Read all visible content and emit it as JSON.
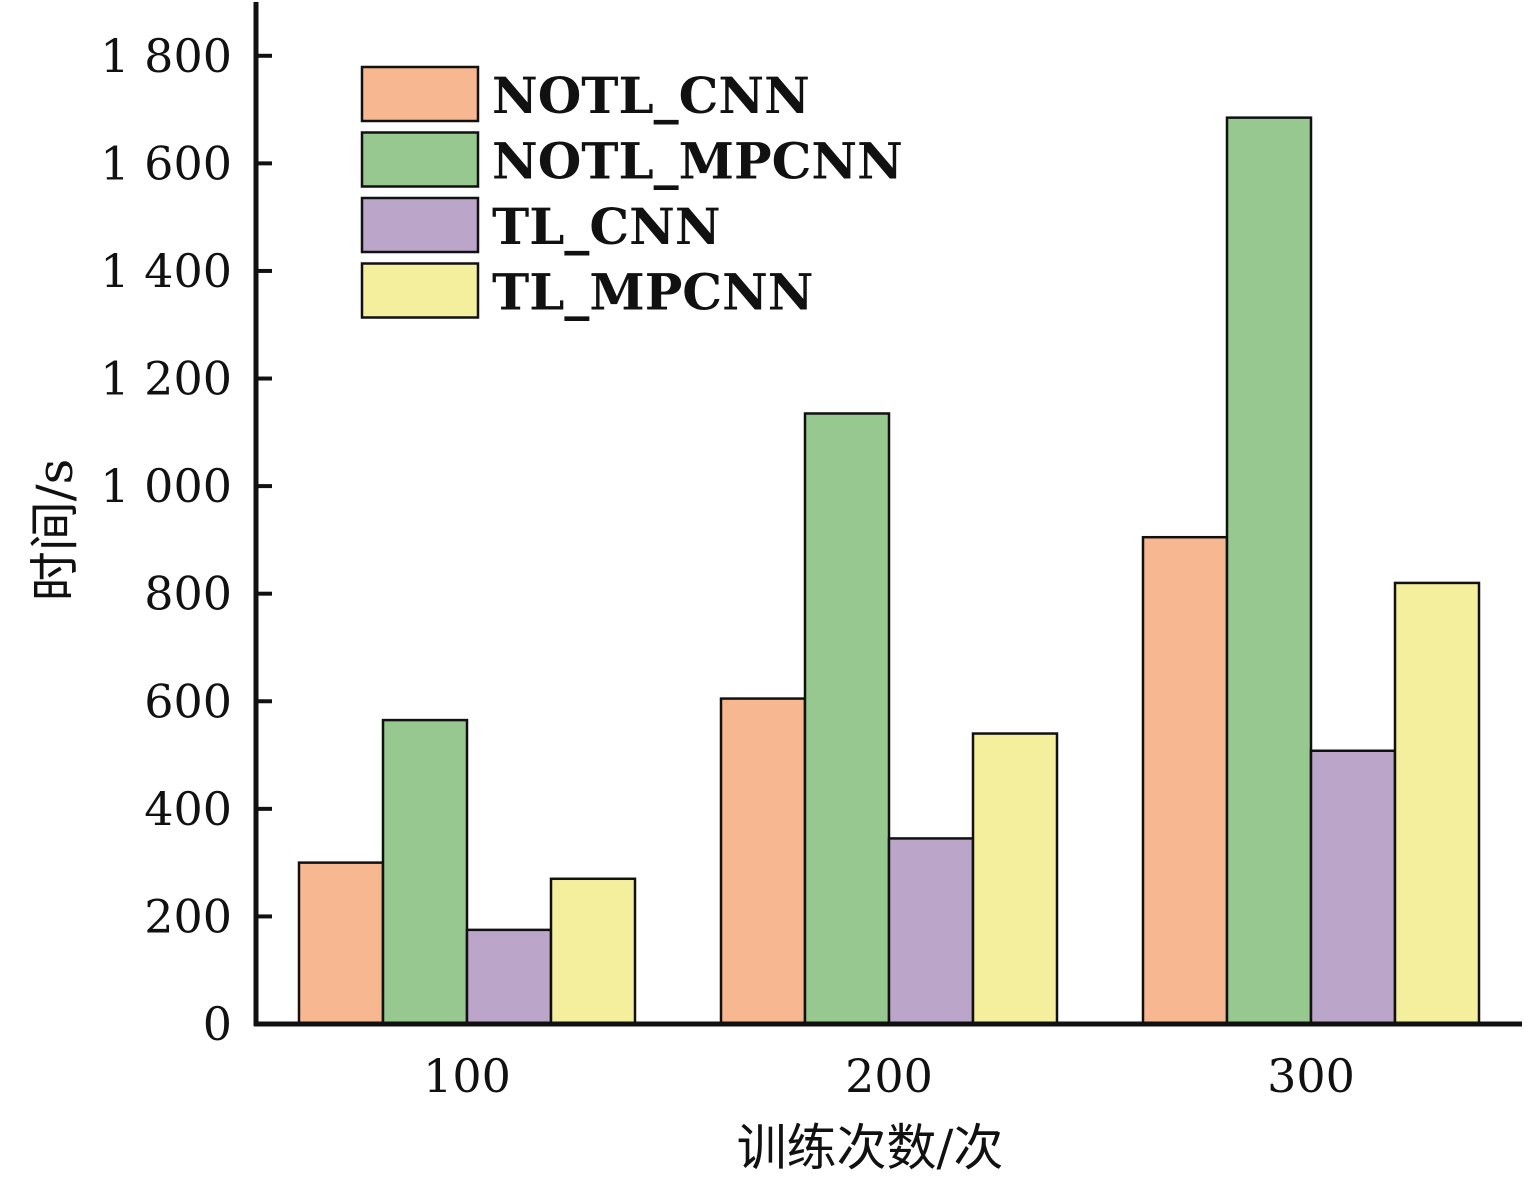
{
  "chart_data": {
    "type": "bar",
    "categories": [
      "100",
      "200",
      "300"
    ],
    "series": [
      {
        "name": "NOTL_CNN",
        "values": [
          300,
          605,
          905
        ],
        "color": "#F7B891"
      },
      {
        "name": "NOTL_MPCNN",
        "values": [
          565,
          1135,
          1685
        ],
        "color": "#97C88F"
      },
      {
        "name": "TL_CNN",
        "values": [
          175,
          345,
          508
        ],
        "color": "#BBA6C9"
      },
      {
        "name": "TL_MPCNN",
        "values": [
          270,
          540,
          820
        ],
        "color": "#F4EF9D"
      }
    ],
    "xlabel": "训练次数/次",
    "ylabel": "时间/s",
    "ylim": [
      0,
      1900
    ],
    "yticks": [
      0,
      200,
      400,
      600,
      800,
      1000,
      1200,
      1400,
      1600,
      1800
    ],
    "ytick_labels": [
      "0",
      "200",
      "400",
      "600",
      "800",
      "1 000",
      "1 200",
      "1 400",
      "1 600",
      "1 800"
    ],
    "legend_position": "top-left",
    "grid": false
  }
}
